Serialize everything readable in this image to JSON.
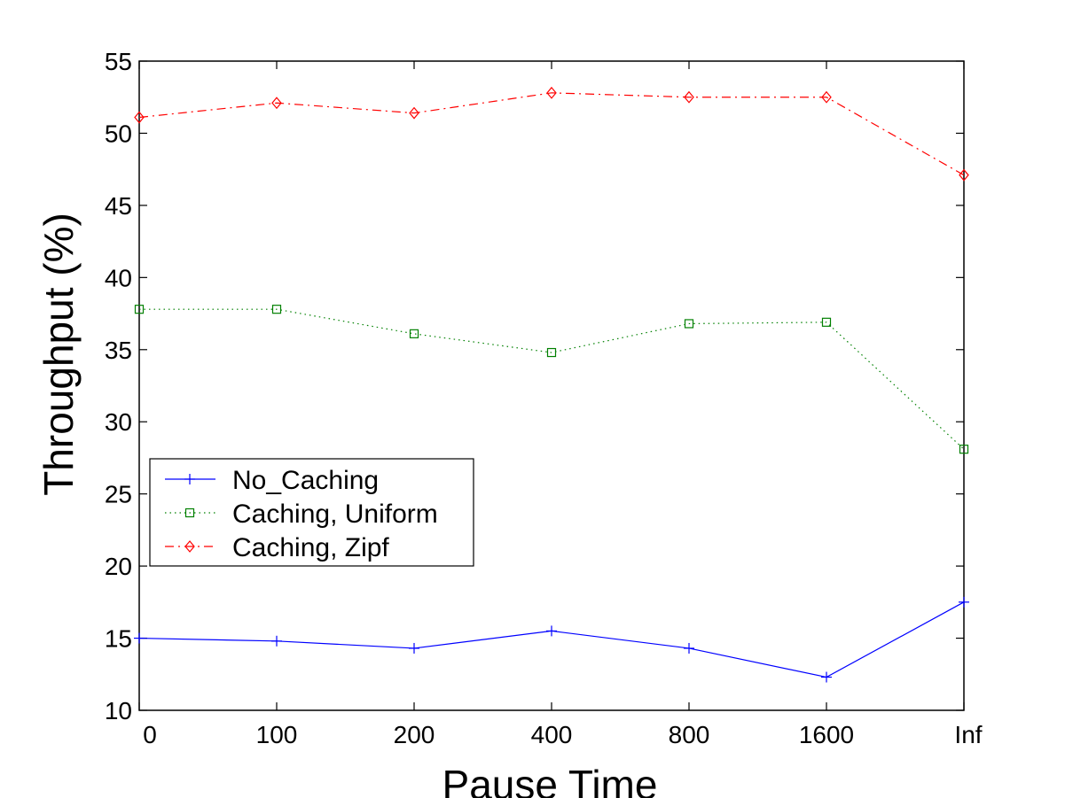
{
  "chart_data": {
    "type": "line",
    "title": "",
    "xlabel": "Pause Time",
    "ylabel": "Throughput (%)",
    "categories": [
      "0",
      "100",
      "200",
      "400",
      "800",
      "1600",
      "Inf"
    ],
    "ylim": [
      10,
      55
    ],
    "yticks": [
      10,
      15,
      20,
      25,
      30,
      35,
      40,
      45,
      50,
      55
    ],
    "grid": false,
    "legend_position": "middle-left",
    "series": [
      {
        "name": "No_Caching",
        "color": "#0000ff",
        "marker": "plus",
        "linestyle": "solid",
        "values": [
          15.0,
          14.8,
          14.3,
          15.5,
          14.3,
          12.3,
          17.5
        ]
      },
      {
        "name": "Caching, Uniform",
        "color": "#008000",
        "marker": "square",
        "linestyle": "dotted",
        "values": [
          37.8,
          37.8,
          36.1,
          34.8,
          36.8,
          36.9,
          28.1
        ]
      },
      {
        "name": "Caching, Zipf",
        "color": "#ff0000",
        "marker": "diamond",
        "linestyle": "dashdot",
        "values": [
          51.1,
          52.1,
          51.4,
          52.8,
          52.5,
          52.5,
          47.1
        ]
      }
    ]
  }
}
